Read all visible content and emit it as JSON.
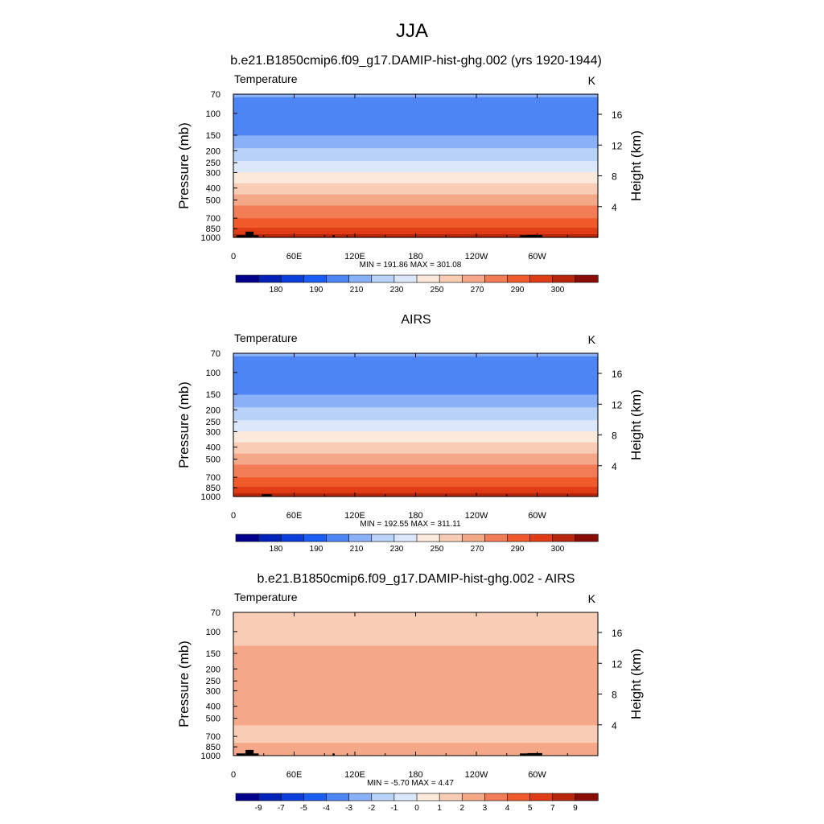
{
  "figure": {
    "title": "JJA"
  },
  "chart_data": [
    {
      "type": "heatmap",
      "title": "b.e21.B1850cmip6.f09_g17.DAMIP-hist-ghg.002 (yrs 1920-1944)",
      "variable": "Temperature",
      "units": "K",
      "xlabel": "",
      "ylabel": "Pressure (mb)",
      "y2label": "Height (km)",
      "x_ticks": [
        "0",
        "60E",
        "120E",
        "180",
        "120W",
        "60W"
      ],
      "x_tick_values": [
        0,
        60,
        120,
        180,
        240,
        300
      ],
      "xlim": [
        0,
        360
      ],
      "y_ticks": [
        70,
        100,
        150,
        200,
        250,
        300,
        400,
        500,
        700,
        850,
        1000
      ],
      "ylim": [
        1000,
        70
      ],
      "y2_ticks": [
        4,
        8,
        12,
        16
      ],
      "y_scale": "log",
      "stats": "MIN = 191.86  MAX = 301.08",
      "colorbar_levels": [
        180,
        185,
        190,
        200,
        210,
        220,
        230,
        240,
        250,
        260,
        270,
        280,
        290,
        295,
        300
      ],
      "colorbar_labels": [
        "180",
        "190",
        "210",
        "230",
        "250",
        "270",
        "290",
        "300"
      ],
      "colorbar_colors": [
        "#00008c",
        "#0022b8",
        "#0a3fdb",
        "#1a5df5",
        "#4e85f4",
        "#8ab0f7",
        "#b8d2f9",
        "#dbe8fc",
        "#fbe9dc",
        "#f9cdb5",
        "#f5a888",
        "#f27c55",
        "#f05a2a",
        "#e03c16",
        "#b8260d",
        "#8a0c06"
      ],
      "profile": [
        {
          "p": 70,
          "v": 212.0
        },
        {
          "p": 100,
          "v": 200.6
        },
        {
          "p": 150,
          "v": 210.0
        },
        {
          "p": 200,
          "v": 222.0
        },
        {
          "p": 250,
          "v": 232.0
        },
        {
          "p": 300,
          "v": 241.0
        },
        {
          "p": 400,
          "v": 255.0
        },
        {
          "p": 500,
          "v": 265.0
        },
        {
          "p": 700,
          "v": 280.0
        },
        {
          "p": 850,
          "v": 290.0
        },
        {
          "p": 1000,
          "v": 297.0
        }
      ],
      "topography": [
        {
          "lon": [
            3,
            12
          ],
          "p_top": 960
        },
        {
          "lon": [
            12,
            20
          ],
          "p_top": 900
        },
        {
          "lon": [
            20,
            25
          ],
          "p_top": 960
        },
        {
          "lon": [
            98,
            100
          ],
          "p_top": 960
        },
        {
          "lon": [
            112,
            113
          ],
          "p_top": 960
        },
        {
          "lon": [
            283,
            290
          ],
          "p_top": 960
        },
        {
          "lon": [
            290,
            305
          ],
          "p_top": 955
        }
      ]
    },
    {
      "type": "heatmap",
      "title": "AIRS",
      "variable": "Temperature",
      "units": "K",
      "xlabel": "",
      "ylabel": "Pressure (mb)",
      "y2label": "Height (km)",
      "x_ticks": [
        "0",
        "60E",
        "120E",
        "180",
        "120W",
        "60W"
      ],
      "x_tick_values": [
        0,
        60,
        120,
        180,
        240,
        300
      ],
      "xlim": [
        0,
        360
      ],
      "y_ticks": [
        70,
        100,
        150,
        200,
        250,
        300,
        400,
        500,
        700,
        850,
        1000
      ],
      "ylim": [
        1000,
        70
      ],
      "y2_ticks": [
        4,
        8,
        12,
        16
      ],
      "y_scale": "log",
      "stats": "MIN = 192.55  MAX = 311.11",
      "colorbar_levels": [
        180,
        185,
        190,
        200,
        210,
        220,
        230,
        240,
        250,
        260,
        270,
        280,
        290,
        295,
        300
      ],
      "colorbar_labels": [
        "180",
        "190",
        "210",
        "230",
        "250",
        "270",
        "290",
        "300"
      ],
      "colorbar_colors": [
        "#00008c",
        "#0022b8",
        "#0a3fdb",
        "#1a5df5",
        "#4e85f4",
        "#8ab0f7",
        "#b8d2f9",
        "#dbe8fc",
        "#fbe9dc",
        "#f9cdb5",
        "#f5a888",
        "#f27c55",
        "#f05a2a",
        "#e03c16",
        "#b8260d",
        "#8a0c06"
      ],
      "profile": [
        {
          "p": 70,
          "v": 212.0
        },
        {
          "p": 100,
          "v": 200.6
        },
        {
          "p": 150,
          "v": 210.0
        },
        {
          "p": 200,
          "v": 222.0
        },
        {
          "p": 250,
          "v": 232.0
        },
        {
          "p": 300,
          "v": 241.0
        },
        {
          "p": 400,
          "v": 255.0
        },
        {
          "p": 500,
          "v": 265.0
        },
        {
          "p": 700,
          "v": 280.0
        },
        {
          "p": 850,
          "v": 290.0
        },
        {
          "p": 1000,
          "v": 297.0
        }
      ],
      "topography": [
        {
          "lon": [
            28,
            38
          ],
          "p_top": 960
        }
      ]
    },
    {
      "type": "heatmap",
      "title": "b.e21.B1850cmip6.f09_g17.DAMIP-hist-ghg.002 - AIRS",
      "variable": "Temperature",
      "units": "K",
      "xlabel": "",
      "ylabel": "Pressure (mb)",
      "y2label": "Height (km)",
      "x_ticks": [
        "0",
        "60E",
        "120E",
        "180",
        "120W",
        "60W"
      ],
      "x_tick_values": [
        0,
        60,
        120,
        180,
        240,
        300
      ],
      "xlim": [
        0,
        360
      ],
      "y_ticks": [
        70,
        100,
        150,
        200,
        250,
        300,
        400,
        500,
        700,
        850,
        1000
      ],
      "ylim": [
        1000,
        70
      ],
      "y2_ticks": [
        4,
        8,
        12,
        16
      ],
      "y_scale": "log",
      "stats": "MIN =  -5.70  MAX =   4.47",
      "colorbar_levels": [
        -9,
        -8,
        -7,
        -6,
        -5,
        -4,
        -3,
        -2,
        -1,
        0,
        1,
        2,
        3,
        4,
        5,
        6,
        7,
        8,
        9
      ],
      "colorbar_labels": [
        "-9",
        "-7",
        "-5",
        "-4",
        "-3",
        "-2",
        "-1",
        "0",
        "1",
        "2",
        "3",
        "4",
        "5",
        "7",
        "9"
      ],
      "colorbar_colors": [
        "#00008c",
        "#0022b8",
        "#0a3fdb",
        "#1a5df5",
        "#4e85f4",
        "#8ab0f7",
        "#b8d2f9",
        "#dbe8fc",
        "#fbe9dc",
        "#f9cdb5",
        "#f5a888",
        "#f27c55",
        "#f05a2a",
        "#e03c16",
        "#b8260d",
        "#8a0c06"
      ],
      "profile": [
        {
          "p": 70,
          "v": -0.5
        },
        {
          "p": 100,
          "v": -0.6
        },
        {
          "p": 150,
          "v": 0.3
        },
        {
          "p": 200,
          "v": 0.8
        },
        {
          "p": 250,
          "v": 0.9
        },
        {
          "p": 300,
          "v": 0.6
        },
        {
          "p": 400,
          "v": 0.4
        },
        {
          "p": 500,
          "v": 0.3
        },
        {
          "p": 700,
          "v": -0.4
        },
        {
          "p": 850,
          "v": 0.2
        },
        {
          "p": 1000,
          "v": 0.3
        }
      ],
      "topography": [
        {
          "lon": [
            3,
            12
          ],
          "p_top": 960
        },
        {
          "lon": [
            12,
            20
          ],
          "p_top": 900
        },
        {
          "lon": [
            20,
            25
          ],
          "p_top": 960
        },
        {
          "lon": [
            98,
            100
          ],
          "p_top": 960
        },
        {
          "lon": [
            112,
            113
          ],
          "p_top": 960
        },
        {
          "lon": [
            283,
            290
          ],
          "p_top": 960
        },
        {
          "lon": [
            290,
            305
          ],
          "p_top": 955
        }
      ]
    }
  ]
}
